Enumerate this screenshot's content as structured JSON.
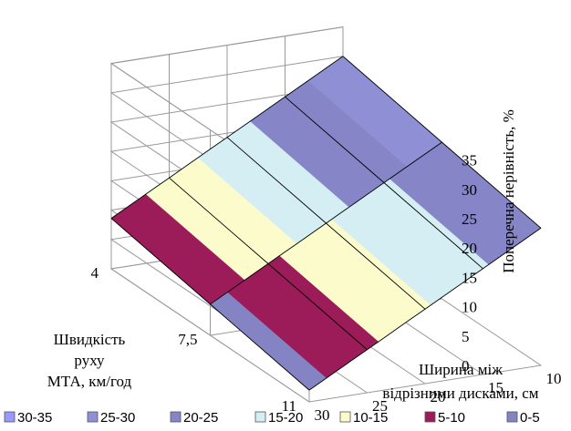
{
  "chart_data": {
    "type": "surface",
    "z_axis": {
      "title": "Поперечна нерівність, %",
      "range": [
        0,
        35
      ],
      "ticks": [
        "0",
        "5",
        "10",
        "15",
        "20",
        "25",
        "30",
        "35"
      ]
    },
    "x_axis": {
      "title_lines": [
        "Ширина між",
        "відрізними дисками, см"
      ],
      "values": [
        30,
        25,
        20,
        15,
        10
      ],
      "tick_labels": [
        "30",
        "25",
        "20",
        "15",
        "10"
      ]
    },
    "y_axis": {
      "title_lines": [
        "Швидкість",
        "руху",
        "МТА, км/год"
      ],
      "values": [
        4,
        7.5,
        11
      ],
      "tick_labels": [
        "4",
        "7,5",
        "11"
      ]
    },
    "bands": [
      {
        "label": "30-35",
        "color": "#9999ff",
        "min": 30,
        "max": 35
      },
      {
        "label": "25-30",
        "color": "#8f8fd6",
        "min": 25,
        "max": 30
      },
      {
        "label": "20-25",
        "color": "#8585c7",
        "min": 20,
        "max": 25
      },
      {
        "label": "15-20",
        "color": "#d4eef4",
        "min": 15,
        "max": 20
      },
      {
        "label": "10-15",
        "color": "#fbfbcc",
        "min": 10,
        "max": 15
      },
      {
        "label": "5-10",
        "color": "#9c1c5a",
        "min": 5,
        "max": 10
      },
      {
        "label": "0-5",
        "color": "#8484c4",
        "min": 0,
        "max": 5
      }
    ]
  }
}
